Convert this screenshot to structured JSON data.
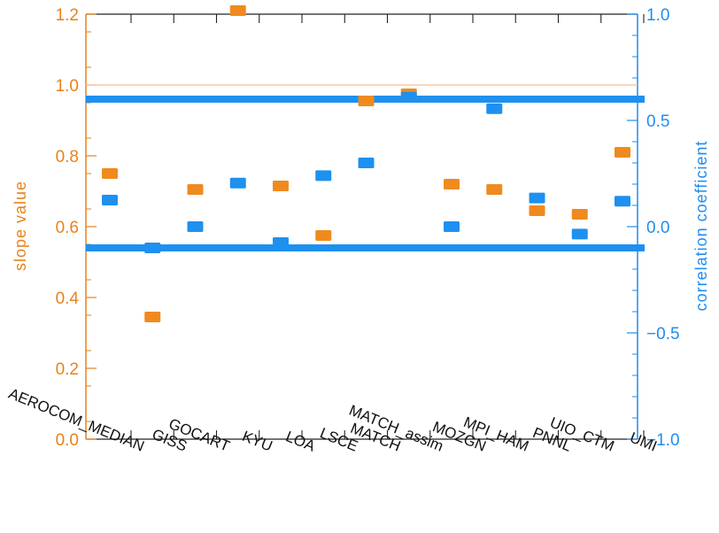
{
  "chart_data": {
    "type": "scatter",
    "categories": [
      "AEROCOM_MEDIAN",
      "GISS",
      "GOCART",
      "KYU",
      "LOA",
      "LSCE",
      "MATCH",
      "MATCH_assim",
      "MOZGN",
      "MPI_HAM",
      "PNNL",
      "UIO_CTM",
      "UMI"
    ],
    "series": [
      {
        "axis": "left",
        "color": "#F08A1E",
        "values": [
          0.75,
          0.345,
          0.705,
          1.21,
          0.715,
          0.575,
          0.955,
          0.975,
          0.72,
          0.705,
          0.645,
          0.635,
          0.81
        ]
      },
      {
        "axis": "right",
        "color": "#1E90F0",
        "values": [
          0.125,
          -0.1,
          0.0,
          0.205,
          -0.075,
          0.24,
          0.3,
          0.61,
          0.0,
          0.555,
          0.135,
          -0.035,
          0.12
        ]
      }
    ],
    "ylabel_left": "slope value",
    "ylabel_right": "correlation coefficient",
    "ylim_left": [
      0.0,
      1.2
    ],
    "ylim_right": [
      -1.0,
      1.0
    ],
    "yticks_left": [
      "0.0",
      "0.2",
      "0.4",
      "0.6",
      "0.8",
      "1.0",
      "1.2"
    ],
    "yticks_left_values": [
      0.0,
      0.2,
      0.4,
      0.6,
      0.8,
      1.0,
      1.2
    ],
    "yticks_right": [
      "−1.0",
      "−0.5",
      "0.0",
      "0.5",
      "1.0"
    ],
    "yticks_right_values": [
      -1.0,
      -0.5,
      0.0,
      0.5,
      1.0
    ],
    "reference_line_left": 1.0,
    "reference_band_right": [
      -0.1,
      0.6
    ],
    "colors": {
      "slope": "#F08A1E",
      "correlation": "#1E90F0",
      "axis_left": "#E8821A",
      "axis_right": "#1E8CF0",
      "reference": "#F6C8A8"
    }
  }
}
